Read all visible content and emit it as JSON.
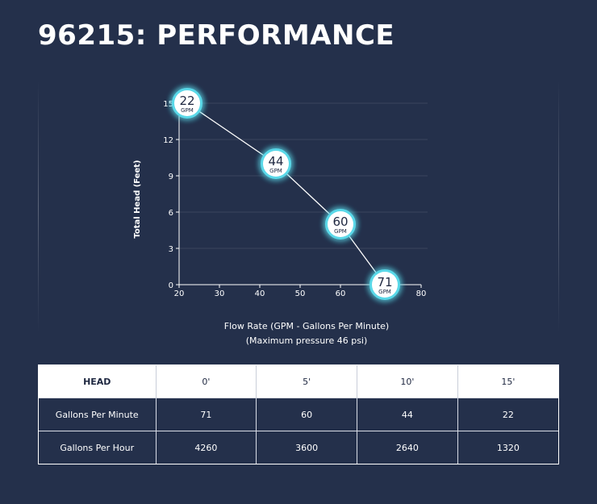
{
  "page": {
    "title": "96215: PERFORMANCE",
    "caption_line1": "Flow Rate (GPM - Gallons Per Minute)",
    "caption_line2": "(Maximum pressure 46 psi)"
  },
  "chart_data": {
    "type": "line",
    "xlabel": "",
    "ylabel": "Total Head (Feet)",
    "xlim": [
      20,
      80
    ],
    "ylim": [
      0,
      15
    ],
    "xticks": [
      20,
      30,
      40,
      50,
      60,
      70,
      80
    ],
    "yticks": [
      0,
      3,
      6,
      9,
      12,
      15
    ],
    "grid": true,
    "series": [
      {
        "x": [
          22,
          44,
          60,
          71
        ],
        "y": [
          15,
          10,
          5,
          0
        ],
        "point_labels": [
          "22",
          "44",
          "60",
          "71"
        ],
        "point_unit": "GPM"
      }
    ],
    "colors": {
      "line": "#ffffff",
      "glow": "#5ad8e8",
      "marker_fill": "#ffffff",
      "marker_text": "#1e2740"
    }
  },
  "table": {
    "headers": [
      "HEAD",
      "0'",
      "5'",
      "10'",
      "15'"
    ],
    "rows": [
      [
        "Gallons Per Minute",
        "71",
        "60",
        "44",
        "22"
      ],
      [
        "Gallons Per Hour",
        "4260",
        "3600",
        "2640",
        "1320"
      ]
    ]
  }
}
